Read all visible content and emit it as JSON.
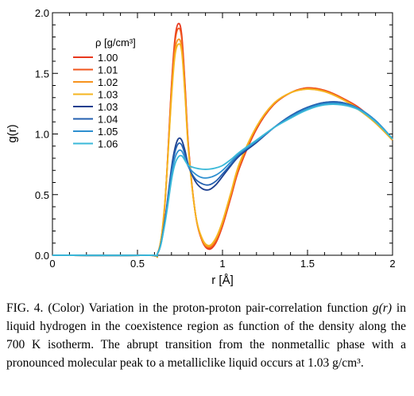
{
  "chart_data": {
    "type": "line",
    "xlabel": "r [Å]",
    "ylabel": "g(r)",
    "xlim": [
      0,
      2
    ],
    "ylim": [
      0,
      2.0
    ],
    "x_ticks": [
      "0",
      "0.5",
      "1",
      "1.5",
      "2"
    ],
    "y_ticks": [
      "0.0",
      "0.5",
      "1.0",
      "1.5",
      "2.0"
    ],
    "legend_title": "ρ [g/cm³]",
    "legend_position": "top-left",
    "series": [
      {
        "name": "1.00",
        "color": "#e8381e",
        "x": [
          0.55,
          0.62,
          0.66,
          0.7,
          0.72,
          0.74,
          0.76,
          0.78,
          0.8,
          0.84,
          0.88,
          0.92,
          0.96,
          1.0,
          1.05,
          1.1,
          1.2,
          1.3,
          1.4,
          1.5,
          1.6,
          1.7,
          1.8,
          1.9,
          2.0
        ],
        "y": [
          0.0,
          0.02,
          0.4,
          1.4,
          1.78,
          1.91,
          1.82,
          1.4,
          0.9,
          0.35,
          0.12,
          0.05,
          0.1,
          0.24,
          0.48,
          0.72,
          1.04,
          1.24,
          1.34,
          1.38,
          1.36,
          1.3,
          1.22,
          1.1,
          0.95
        ]
      },
      {
        "name": "1.01",
        "color": "#f0561c",
        "x": [
          0.55,
          0.62,
          0.66,
          0.7,
          0.72,
          0.74,
          0.76,
          0.78,
          0.8,
          0.84,
          0.88,
          0.92,
          0.96,
          1.0,
          1.05,
          1.1,
          1.2,
          1.3,
          1.4,
          1.5,
          1.6,
          1.7,
          1.8,
          1.9,
          2.0
        ],
        "y": [
          0.0,
          0.02,
          0.4,
          1.38,
          1.75,
          1.87,
          1.79,
          1.38,
          0.89,
          0.35,
          0.12,
          0.06,
          0.11,
          0.25,
          0.49,
          0.73,
          1.05,
          1.24,
          1.34,
          1.38,
          1.36,
          1.3,
          1.21,
          1.09,
          0.95
        ]
      },
      {
        "name": "1.02",
        "color": "#f7931e",
        "x": [
          0.55,
          0.62,
          0.66,
          0.7,
          0.72,
          0.74,
          0.76,
          0.78,
          0.8,
          0.84,
          0.88,
          0.92,
          0.96,
          1.0,
          1.05,
          1.1,
          1.2,
          1.3,
          1.4,
          1.5,
          1.6,
          1.7,
          1.8,
          1.9,
          2.0
        ],
        "y": [
          0.0,
          0.02,
          0.41,
          1.33,
          1.68,
          1.78,
          1.71,
          1.33,
          0.87,
          0.35,
          0.13,
          0.07,
          0.13,
          0.27,
          0.51,
          0.75,
          1.06,
          1.25,
          1.34,
          1.37,
          1.35,
          1.29,
          1.21,
          1.09,
          0.95
        ]
      },
      {
        "name": "1.03",
        "color": "#f5b520",
        "x": [
          0.55,
          0.62,
          0.66,
          0.7,
          0.72,
          0.74,
          0.76,
          0.78,
          0.8,
          0.84,
          0.88,
          0.92,
          0.96,
          1.0,
          1.05,
          1.1,
          1.2,
          1.3,
          1.4,
          1.5,
          1.6,
          1.7,
          1.8,
          1.9,
          2.0
        ],
        "y": [
          0.0,
          0.02,
          0.42,
          1.3,
          1.64,
          1.74,
          1.68,
          1.31,
          0.86,
          0.35,
          0.14,
          0.08,
          0.14,
          0.28,
          0.52,
          0.76,
          1.06,
          1.25,
          1.34,
          1.37,
          1.35,
          1.29,
          1.2,
          1.09,
          0.95
        ]
      },
      {
        "name": "1.03",
        "color": "#1c3f8f",
        "x": [
          0.55,
          0.62,
          0.66,
          0.7,
          0.72,
          0.74,
          0.76,
          0.78,
          0.8,
          0.84,
          0.88,
          0.92,
          0.96,
          1.0,
          1.05,
          1.1,
          1.2,
          1.3,
          1.4,
          1.5,
          1.6,
          1.7,
          1.8,
          1.9,
          2.0
        ],
        "y": [
          0.0,
          0.02,
          0.28,
          0.72,
          0.88,
          0.96,
          0.95,
          0.86,
          0.74,
          0.61,
          0.55,
          0.54,
          0.58,
          0.65,
          0.74,
          0.82,
          0.93,
          1.05,
          1.15,
          1.22,
          1.26,
          1.26,
          1.21,
          1.11,
          0.96
        ]
      },
      {
        "name": "1.04",
        "color": "#2460b0",
        "x": [
          0.55,
          0.62,
          0.66,
          0.7,
          0.72,
          0.74,
          0.76,
          0.78,
          0.8,
          0.84,
          0.88,
          0.92,
          0.96,
          1.0,
          1.05,
          1.1,
          1.2,
          1.3,
          1.4,
          1.5,
          1.6,
          1.7,
          1.8,
          1.9,
          2.0
        ],
        "y": [
          0.0,
          0.02,
          0.27,
          0.7,
          0.85,
          0.92,
          0.91,
          0.83,
          0.73,
          0.63,
          0.59,
          0.58,
          0.61,
          0.67,
          0.75,
          0.83,
          0.94,
          1.05,
          1.15,
          1.22,
          1.26,
          1.26,
          1.21,
          1.11,
          0.96
        ]
      },
      {
        "name": "1.05",
        "color": "#2e8fd0",
        "x": [
          0.55,
          0.62,
          0.66,
          0.7,
          0.72,
          0.74,
          0.76,
          0.78,
          0.8,
          0.84,
          0.88,
          0.92,
          0.96,
          1.0,
          1.05,
          1.1,
          1.2,
          1.3,
          1.4,
          1.5,
          1.6,
          1.7,
          1.8,
          1.9,
          2.0
        ],
        "y": [
          0.0,
          0.02,
          0.26,
          0.66,
          0.8,
          0.86,
          0.86,
          0.8,
          0.73,
          0.67,
          0.64,
          0.64,
          0.66,
          0.7,
          0.77,
          0.84,
          0.94,
          1.05,
          1.14,
          1.21,
          1.25,
          1.25,
          1.21,
          1.11,
          0.96
        ]
      },
      {
        "name": "1.06",
        "color": "#3ab9d8",
        "x": [
          0.55,
          0.62,
          0.66,
          0.7,
          0.72,
          0.74,
          0.76,
          0.78,
          0.8,
          0.84,
          0.88,
          0.92,
          0.96,
          1.0,
          1.05,
          1.1,
          1.2,
          1.3,
          1.4,
          1.5,
          1.6,
          1.7,
          1.8,
          1.9,
          2.0
        ],
        "y": [
          0.0,
          0.02,
          0.25,
          0.62,
          0.75,
          0.81,
          0.82,
          0.78,
          0.74,
          0.72,
          0.71,
          0.71,
          0.72,
          0.74,
          0.79,
          0.85,
          0.95,
          1.05,
          1.13,
          1.2,
          1.24,
          1.24,
          1.2,
          1.1,
          0.96
        ]
      }
    ]
  },
  "caption": {
    "part1": "FIG. 4. (Color) Variation in the proton-proton pair-correlation function ",
    "italic": "g(r)",
    "part2": " in liquid hydrogen in the coexistence region as function of the density along the 700 K isotherm. The abrupt transition from the nonmetallic phase with a pronounced molecular peak to a metalliclike liquid occurs at 1.03  g/cm³."
  }
}
